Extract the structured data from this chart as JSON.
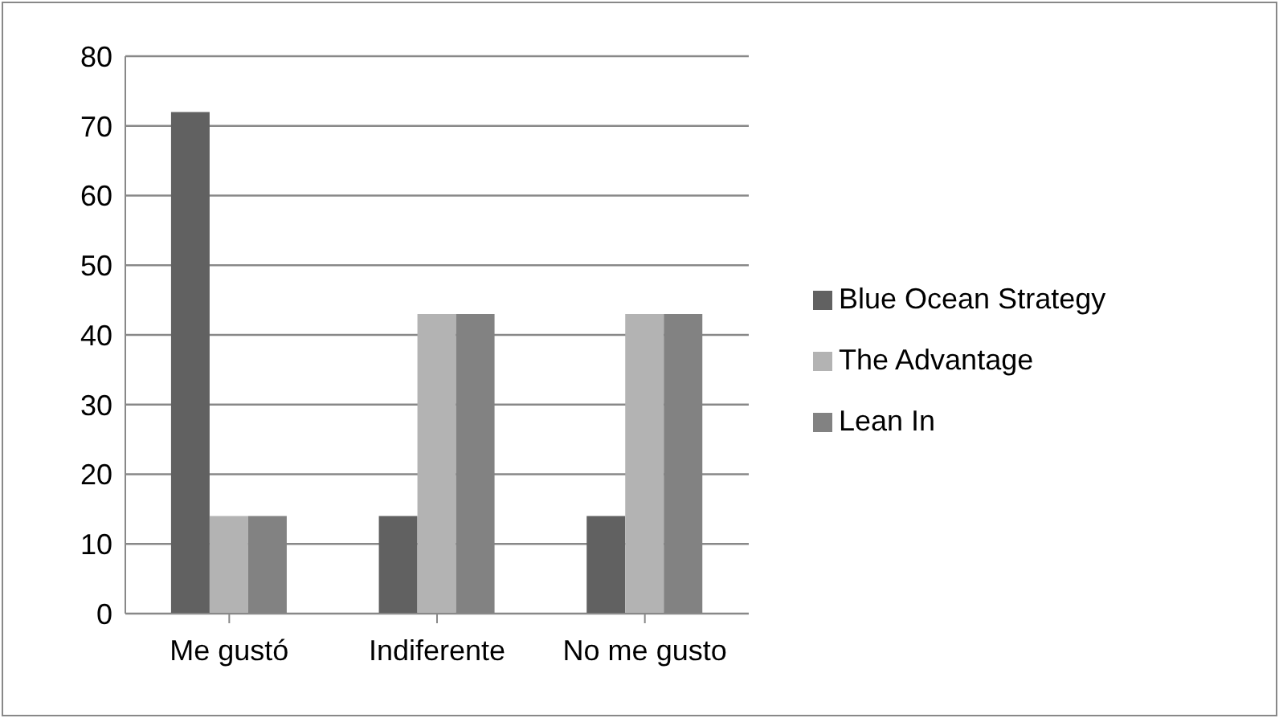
{
  "chart_data": {
    "type": "bar",
    "categories": [
      "Me gustó",
      "Indiferente",
      "No me gusto"
    ],
    "series": [
      {
        "name": "Blue Ocean Strategy",
        "color": "#616161",
        "values": [
          72,
          14,
          14
        ]
      },
      {
        "name": "The Advantage",
        "color": "#b3b3b3",
        "values": [
          14,
          43,
          43
        ]
      },
      {
        "name": "Lean In",
        "color": "#828282",
        "values": [
          14,
          43,
          43
        ]
      }
    ],
    "ylim": [
      0,
      80
    ],
    "yticks": [
      0,
      10,
      20,
      30,
      40,
      50,
      60,
      70,
      80
    ],
    "grid": "y",
    "legend": "right"
  }
}
